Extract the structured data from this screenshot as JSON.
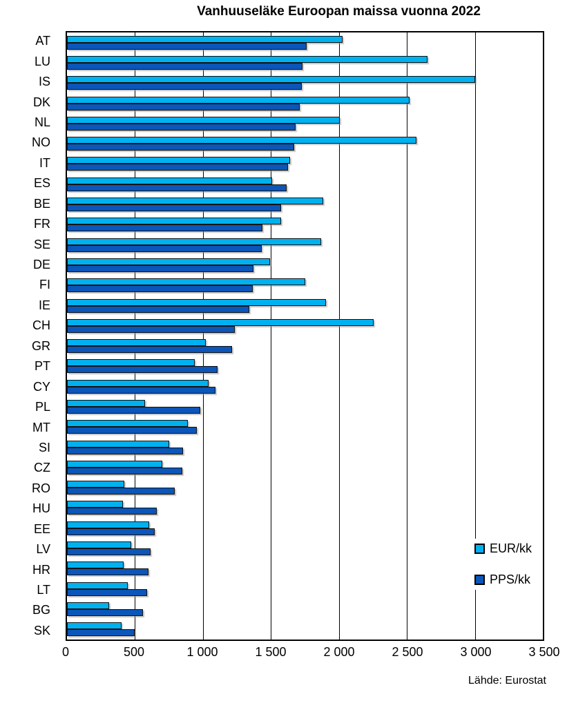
{
  "title": "Vanhuuseläke Euroopan maissa vuonna 2022",
  "source": "Lähde: Eurostat",
  "colors": {
    "eur": "#00B1F0",
    "pps": "#0B56B8",
    "axis": "#000000",
    "background": "#FFFFFF"
  },
  "legend": {
    "position": "inside-right",
    "items": [
      {
        "label": "EUR/kk",
        "color": "#00B1F0"
      },
      {
        "label": "PPS/kk",
        "color": "#0B56B8"
      }
    ]
  },
  "chart_data": {
    "type": "bar",
    "orientation": "horizontal",
    "title": "Vanhuuseläke Euroopan maissa vuonna 2022",
    "xlabel": "",
    "ylabel": "",
    "xlim": [
      0,
      3500
    ],
    "xtick_values": [
      0,
      500,
      1000,
      1500,
      2000,
      2500,
      3000,
      3500
    ],
    "xtick_labels": [
      "0",
      "500",
      "1 000",
      "1 500",
      "2 000",
      "2 500",
      "3 000",
      "3 500"
    ],
    "grid": "vertical",
    "categories": [
      "AT",
      "LU",
      "IS",
      "DK",
      "NL",
      "NO",
      "IT",
      "ES",
      "BE",
      "FR",
      "SE",
      "DE",
      "FI",
      "IE",
      "CH",
      "GR",
      "PT",
      "CY",
      "PL",
      "MT",
      "SI",
      "CZ",
      "RO",
      "HU",
      "EE",
      "LV",
      "HR",
      "LT",
      "BG",
      "SK"
    ],
    "series": [
      {
        "name": "EUR/kk",
        "color": "#00B1F0",
        "values": [
          2025,
          2650,
          3000,
          2520,
          2005,
          2570,
          1640,
          1510,
          1885,
          1575,
          1870,
          1495,
          1755,
          1905,
          2255,
          1020,
          940,
          1040,
          575,
          890,
          750,
          700,
          420,
          410,
          605,
          470,
          415,
          445,
          310,
          400
        ]
      },
      {
        "name": "PPS/kk",
        "color": "#0B56B8",
        "values": [
          1765,
          1730,
          1725,
          1710,
          1680,
          1670,
          1625,
          1615,
          1575,
          1440,
          1430,
          1370,
          1365,
          1340,
          1235,
          1215,
          1105,
          1090,
          980,
          955,
          855,
          850,
          790,
          660,
          645,
          615,
          600,
          590,
          560,
          500
        ]
      }
    ]
  }
}
